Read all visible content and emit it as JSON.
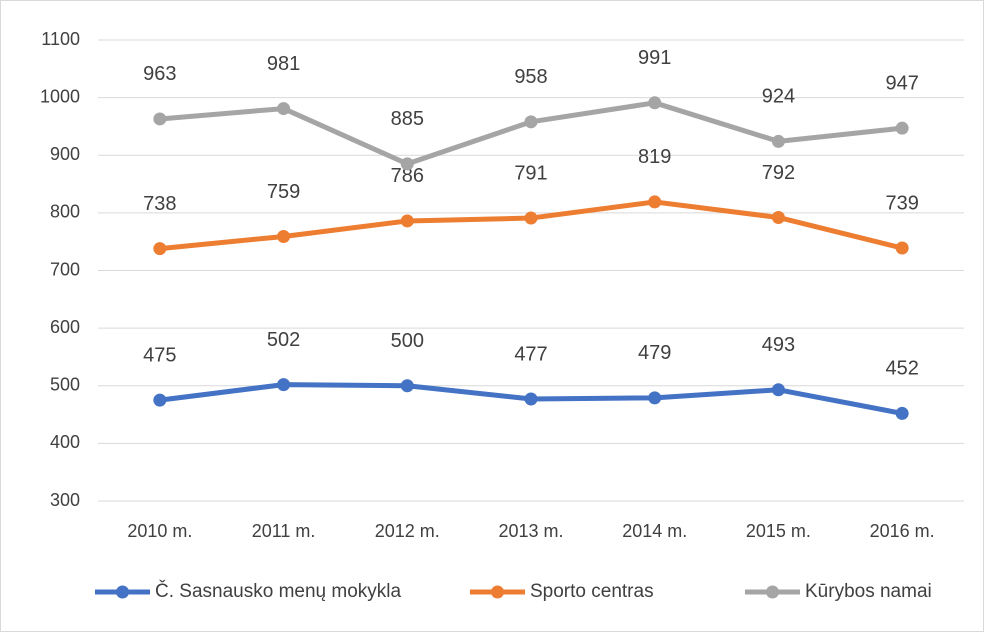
{
  "chart_data": {
    "type": "line",
    "categories": [
      "2010 m.",
      "2011 m.",
      "2012 m.",
      "2013 m.",
      "2014 m.",
      "2015 m.",
      "2016 m."
    ],
    "series": [
      {
        "name": "Č. Sasnausko menų mokykla",
        "color": "#4472c4",
        "values": [
          475,
          502,
          500,
          477,
          479,
          493,
          452
        ]
      },
      {
        "name": "Sporto centras",
        "color": "#ed7d31",
        "values": [
          738,
          759,
          786,
          791,
          819,
          792,
          739
        ]
      },
      {
        "name": "Kūrybos namai",
        "color": "#a5a5a5",
        "values": [
          963,
          981,
          885,
          958,
          991,
          924,
          947
        ]
      }
    ],
    "ylim": [
      300,
      1100
    ],
    "yticks": [
      300,
      400,
      500,
      600,
      700,
      800,
      900,
      1000,
      1100
    ],
    "grid": true,
    "legend": "bottom"
  }
}
